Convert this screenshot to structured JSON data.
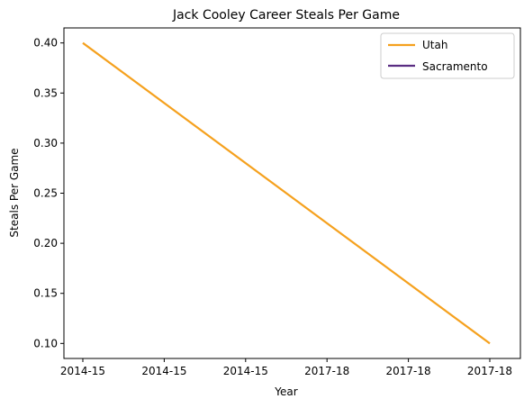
{
  "chart_data": {
    "type": "line",
    "title": "Jack Cooley Career Steals Per Game",
    "xlabel": "Year",
    "ylabel": "Steals Per Game",
    "x_tick_labels": [
      "2014-15",
      "2014-15",
      "2014-15",
      "2017-18",
      "2017-18",
      "2017-18"
    ],
    "y_ticks": [
      0.1,
      0.15,
      0.2,
      0.25,
      0.3,
      0.35,
      0.4
    ],
    "ylim": [
      0.085,
      0.415
    ],
    "grid": false,
    "legend": "top-right",
    "series": [
      {
        "name": "Utah",
        "color": "#f5a11e",
        "points": [
          {
            "x_index": 0,
            "y": 0.4
          },
          {
            "x_index": 5,
            "y": 0.1
          }
        ]
      },
      {
        "name": "Sacramento",
        "color": "#5a2d82",
        "points": []
      }
    ]
  }
}
